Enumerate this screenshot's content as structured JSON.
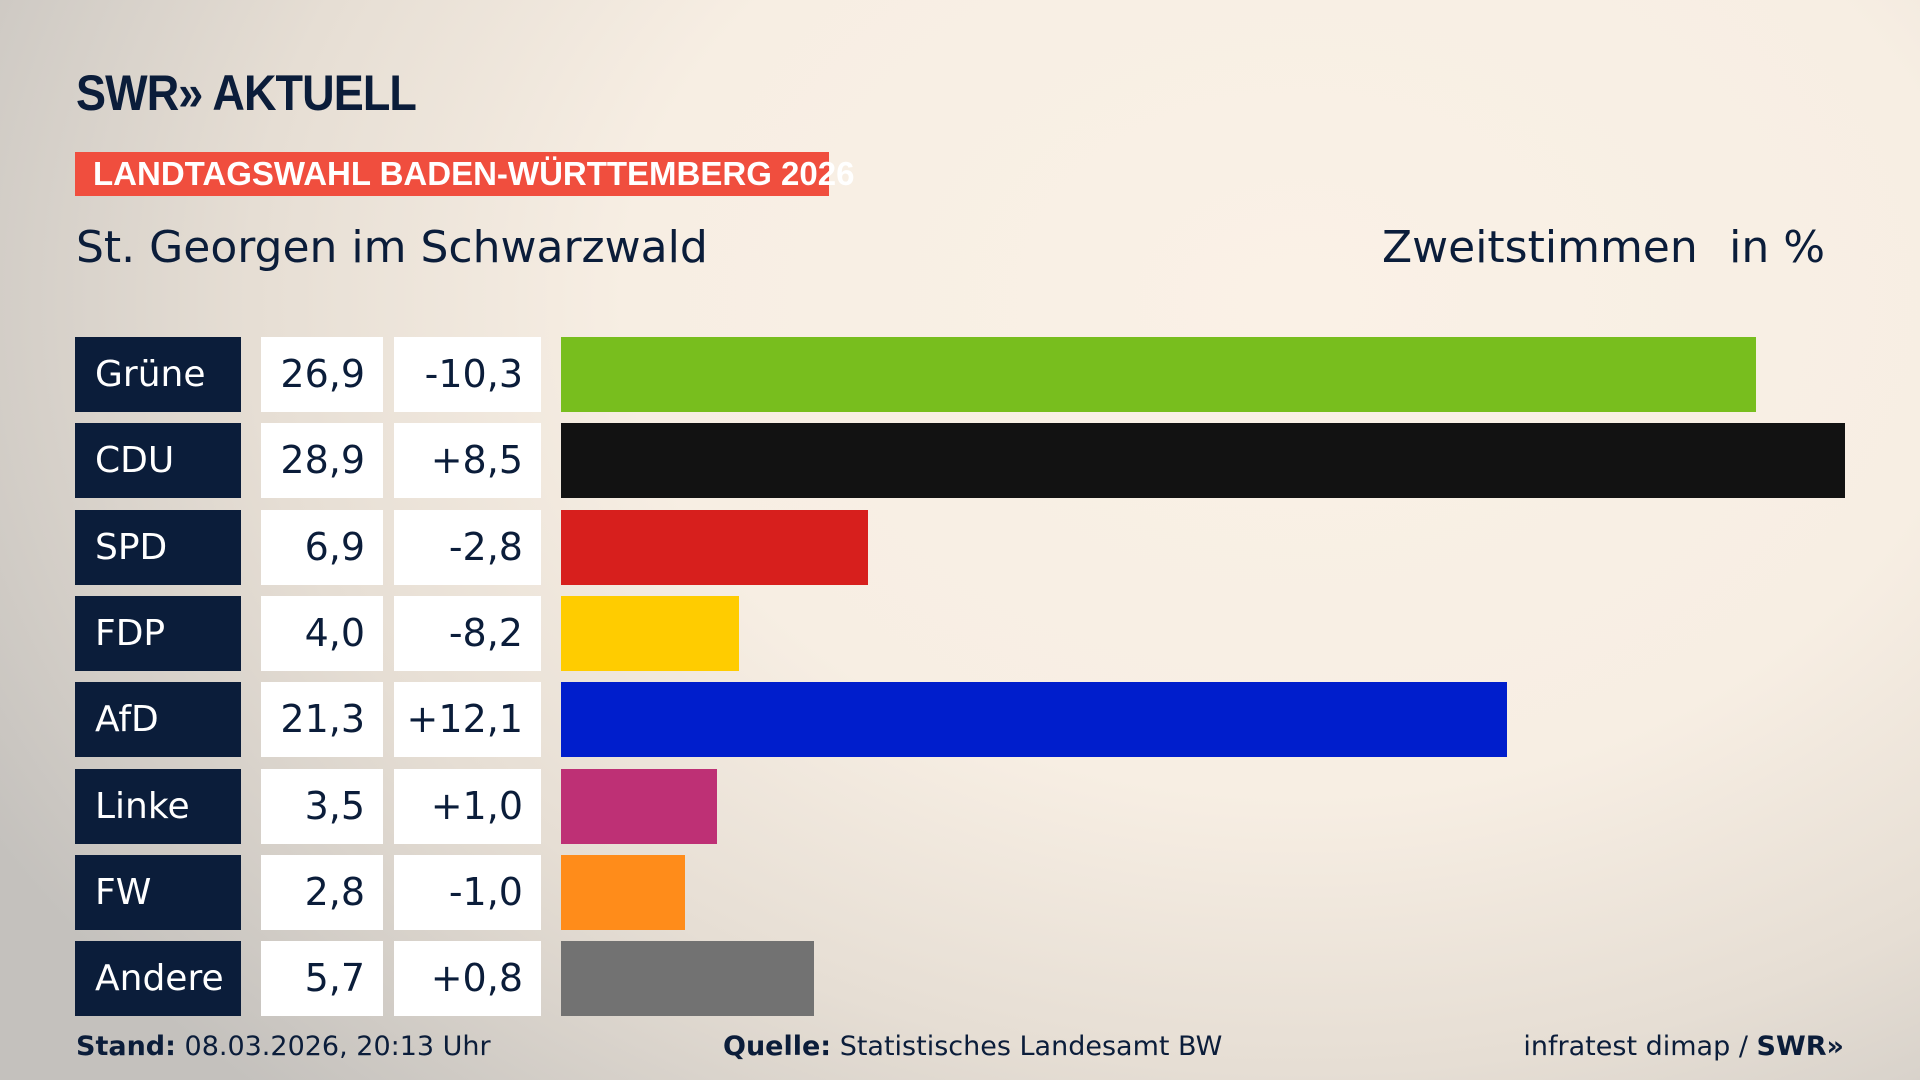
{
  "header": {
    "logo": "SWR» AKTUELL",
    "banner": "LANDTAGSWAHL BADEN-WÜRTTEMBERG 2026",
    "place": "St. Georgen im Schwarzwald",
    "metric": "Zweitstimmen",
    "unit": "in %"
  },
  "chart_data": {
    "type": "bar",
    "orientation": "horizontal",
    "categories": [
      "Grüne",
      "CDU",
      "SPD",
      "FDP",
      "AfD",
      "Linke",
      "FW",
      "Andere"
    ],
    "values": [
      26.9,
      28.9,
      6.9,
      4.0,
      21.3,
      3.5,
      2.8,
      5.7
    ],
    "value_labels": [
      "26,9",
      "28,9",
      "6,9",
      "4,0",
      "21,3",
      "3,5",
      "2,8",
      "5,7"
    ],
    "change_labels": [
      "-10,3",
      "+8,5",
      "-2,8",
      "-8,2",
      "+12,1",
      "+1,0",
      "-1,0",
      "+0,8"
    ],
    "changes": [
      -10.3,
      8.5,
      -2.8,
      -8.2,
      12.1,
      1.0,
      -1.0,
      0.8
    ],
    "colors": [
      "#78be1e",
      "#121212",
      "#d71f1d",
      "#ffcc00",
      "#001ecc",
      "#be3075",
      "#ff8c1a",
      "#727272"
    ],
    "xlim": [
      0,
      28.9
    ],
    "grid": false
  },
  "footer": {
    "stand_label": "Stand:",
    "stand": "08.03.2026, 20:13 Uhr",
    "source_label": "Quelle:",
    "source": "Statistisches Landesamt BW",
    "credit": "infratest dimap /",
    "credit_logo": "SWR»"
  }
}
